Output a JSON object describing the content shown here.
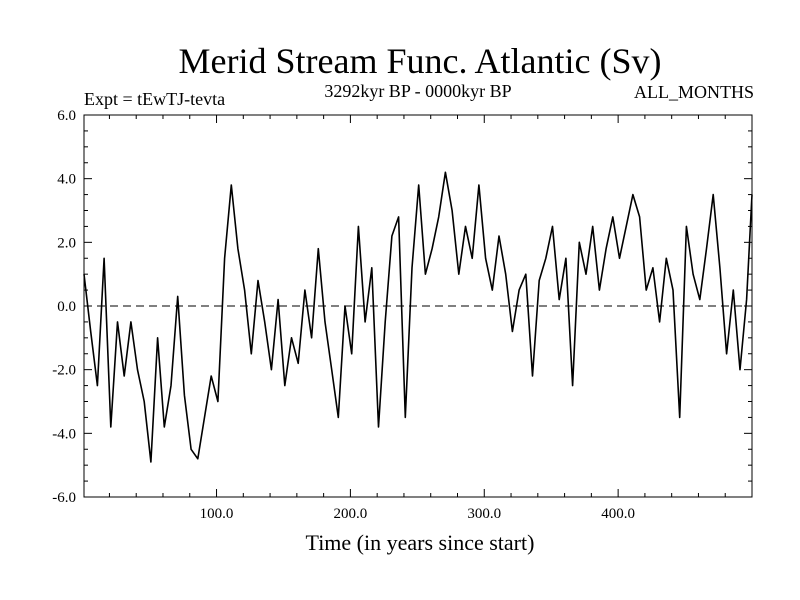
{
  "chart_data": {
    "type": "line",
    "title": "Merid Stream Func. Atlantic (Sv)",
    "left_label": "Expt = tEwTJ-tevta",
    "center_label": "3292kyr BP - 0000kyr BP",
    "right_label": "ALL_MONTHS",
    "xlabel": "Time (in years since start)",
    "ylabel": "",
    "xlim": [
      1,
      500
    ],
    "ylim": [
      -6,
      6
    ],
    "xticks": [
      100,
      200,
      300,
      400
    ],
    "xtick_labels": [
      "100.0",
      "200.0",
      "300.0",
      "400.0"
    ],
    "yticks": [
      6,
      4,
      2,
      0,
      -2,
      -4,
      -6
    ],
    "ytick_labels": [
      "6.0",
      "4.0",
      "2.0",
      "0.0",
      "-2.0",
      "-4.0",
      "-6.0"
    ],
    "zero_line": {
      "y": 0,
      "style": "dashed"
    },
    "series": [
      {
        "name": "Merid Stream Func. Atlantic",
        "color": "#000000",
        "x": [
          1,
          6,
          11,
          16,
          21,
          26,
          31,
          36,
          41,
          46,
          51,
          56,
          61,
          66,
          71,
          76,
          81,
          86,
          91,
          96,
          101,
          106,
          111,
          116,
          121,
          126,
          131,
          136,
          141,
          146,
          151,
          156,
          161,
          166,
          171,
          176,
          181,
          186,
          191,
          196,
          201,
          206,
          211,
          216,
          221,
          226,
          231,
          236,
          241,
          246,
          251,
          256,
          261,
          266,
          271,
          276,
          281,
          286,
          291,
          296,
          301,
          306,
          311,
          316,
          321,
          326,
          331,
          336,
          341,
          346,
          351,
          356,
          361,
          366,
          371,
          376,
          381,
          386,
          391,
          396,
          401,
          406,
          411,
          416,
          421,
          426,
          431,
          436,
          441,
          446,
          451,
          456,
          461,
          466,
          471,
          476,
          481,
          486,
          491,
          496,
          500
        ],
        "y": [
          1.0,
          -0.8,
          -2.5,
          1.5,
          -3.8,
          -0.5,
          -2.2,
          -0.5,
          -2.0,
          -3.0,
          -4.9,
          -1.0,
          -3.8,
          -2.5,
          0.3,
          -2.8,
          -4.5,
          -4.8,
          -3.5,
          -2.2,
          -3.0,
          1.5,
          3.8,
          1.8,
          0.5,
          -1.5,
          0.8,
          -0.5,
          -2.0,
          0.2,
          -2.5,
          -1.0,
          -1.8,
          0.5,
          -1.0,
          1.8,
          -0.5,
          -2.0,
          -3.5,
          0.0,
          -1.5,
          2.5,
          -0.5,
          1.2,
          -3.8,
          -0.5,
          2.2,
          2.8,
          -3.5,
          1.2,
          3.8,
          1.0,
          1.8,
          2.8,
          4.2,
          3.0,
          1.0,
          2.5,
          1.5,
          3.8,
          1.5,
          0.5,
          2.2,
          1.0,
          -0.8,
          0.5,
          1.0,
          -2.2,
          0.8,
          1.5,
          2.5,
          0.2,
          1.5,
          -2.5,
          2.0,
          1.0,
          2.5,
          0.5,
          1.8,
          2.8,
          1.5,
          2.5,
          3.5,
          2.8,
          0.5,
          1.2,
          -0.5,
          1.5,
          0.5,
          -3.5,
          2.5,
          1.0,
          0.2,
          1.8,
          3.5,
          1.2,
          -1.5,
          0.5,
          -2.0,
          0.2,
          3.5
        ]
      }
    ]
  }
}
